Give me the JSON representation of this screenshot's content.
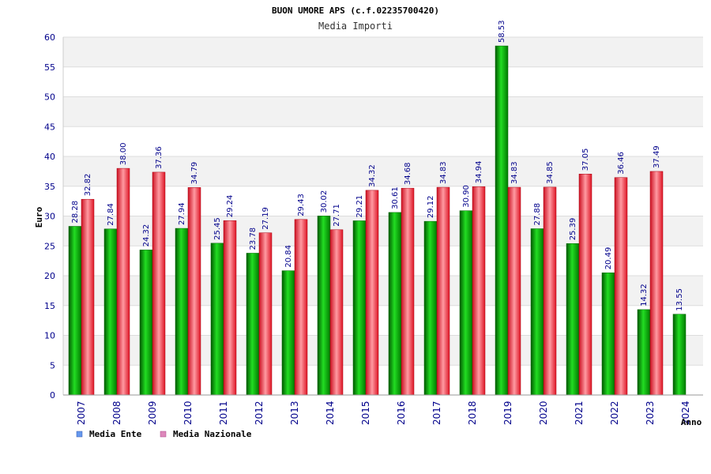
{
  "chart_data": {
    "type": "bar",
    "title": "BUON UMORE APS (c.f.02235700420)",
    "subtitle": "Media Importi",
    "xlabel": "Anno",
    "ylabel": "Euro",
    "ylim": [
      0,
      60
    ],
    "yticks": [
      0,
      5,
      10,
      15,
      20,
      25,
      30,
      35,
      40,
      45,
      50,
      55,
      60
    ],
    "grid": true,
    "legend_position": "bottom-left",
    "categories": [
      "2007",
      "2008",
      "2009",
      "2010",
      "2011",
      "2012",
      "2013",
      "2014",
      "2015",
      "2016",
      "2017",
      "2018",
      "2019",
      "2020",
      "2021",
      "2022",
      "2023",
      "2024"
    ],
    "series": [
      {
        "name": "Media Ente",
        "color": "#00b000",
        "legend_color": "#6699ee",
        "values": [
          28.28,
          27.84,
          24.32,
          27.94,
          25.45,
          23.78,
          20.84,
          30.02,
          29.21,
          30.61,
          29.12,
          30.9,
          58.53,
          27.88,
          25.39,
          20.49,
          14.32,
          13.55
        ],
        "labels": [
          "28.28",
          "27.84",
          "24.32",
          "27.94",
          "25.45",
          "23.78",
          "20.84",
          "30.02",
          "29.21",
          "30.61",
          "29.12",
          "30.90",
          "58.53",
          "27.88",
          "25.39",
          "20.49",
          "14.32",
          "13.55"
        ]
      },
      {
        "name": "Media Nazionale",
        "color": "#ee2233",
        "legend_color": "#dd88bb",
        "values": [
          32.82,
          38.0,
          37.36,
          34.79,
          29.24,
          27.19,
          29.43,
          27.71,
          34.32,
          34.68,
          34.83,
          34.94,
          34.83,
          34.85,
          37.05,
          36.46,
          37.49,
          null
        ],
        "labels": [
          "32.82",
          "38.00",
          "37.36",
          "34.79",
          "29.24",
          "27.19",
          "29.43",
          "27.71",
          "34.32",
          "34.68",
          "34.83",
          "34.94",
          "34.83",
          "34.85",
          "37.05",
          "36.46",
          "37.49",
          ""
        ]
      }
    ]
  }
}
